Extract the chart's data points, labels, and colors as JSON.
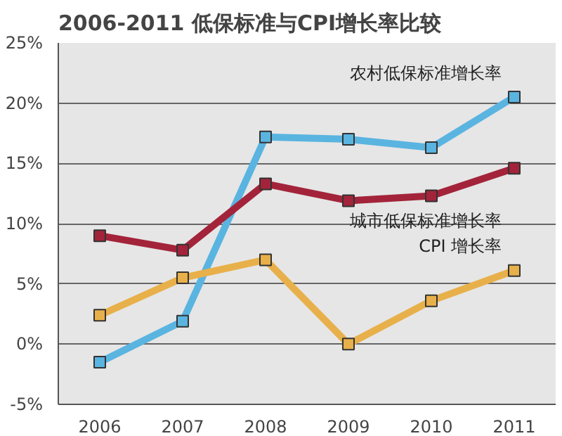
{
  "chart_data": {
    "type": "line",
    "title": "2006-2011 低保标准与CPI增长率比较",
    "categories": [
      "2006",
      "2007",
      "2008",
      "2009",
      "2010",
      "2011"
    ],
    "series": [
      {
        "name": "农村低保标准增长率",
        "color": "#5ab4e0",
        "values": [
          -1.5,
          1.9,
          17.2,
          17,
          16.3,
          20.5
        ]
      },
      {
        "name": "城市低保标准增长率",
        "color": "#a3243a",
        "values": [
          9,
          7.8,
          13.3,
          11.9,
          12.3,
          14.6
        ]
      },
      {
        "name": "CPI 增长率",
        "color": "#e8b04a",
        "values": [
          2.4,
          5.5,
          7,
          0,
          3.6,
          6.1
        ]
      }
    ],
    "ylim": [
      -5,
      25
    ],
    "yticks": [
      {
        "value": -5,
        "label": "-5%"
      },
      {
        "value": 0,
        "label": "0%"
      },
      {
        "value": 5,
        "label": "5%"
      },
      {
        "value": 10,
        "label": "10%"
      },
      {
        "value": 15,
        "label": "15%"
      },
      {
        "value": 20,
        "label": "20%"
      },
      {
        "value": 25,
        "label": "25%"
      }
    ],
    "grid": "y",
    "marker": "square",
    "line_style": "solid"
  }
}
